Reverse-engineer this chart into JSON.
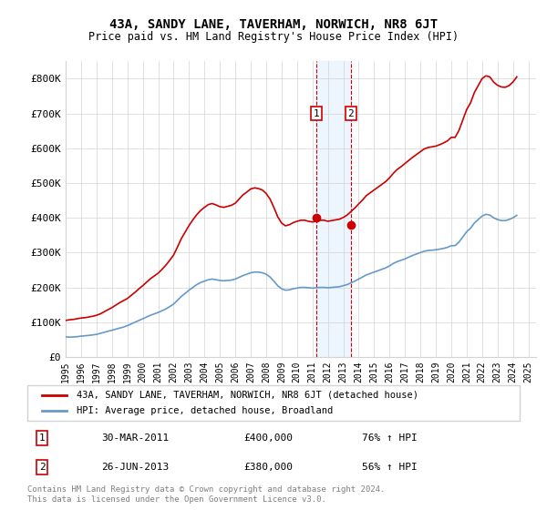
{
  "title": "43A, SANDY LANE, TAVERHAM, NORWICH, NR8 6JT",
  "subtitle": "Price paid vs. HM Land Registry's House Price Index (HPI)",
  "legend_line1": "43A, SANDY LANE, TAVERHAM, NORWICH, NR8 6JT (detached house)",
  "legend_line2": "HPI: Average price, detached house, Broadland",
  "annotation1_label": "1",
  "annotation1_date": "30-MAR-2011",
  "annotation1_price": 400000,
  "annotation1_pct": "76% ↑ HPI",
  "annotation2_label": "2",
  "annotation2_date": "26-JUN-2013",
  "annotation2_price": 380000,
  "annotation2_pct": "56% ↑ HPI",
  "footer": "Contains HM Land Registry data © Crown copyright and database right 2024.\nThis data is licensed under the Open Government Licence v3.0.",
  "red_color": "#cc0000",
  "blue_color": "#6699cc",
  "annotation_box_color": "#cc0000",
  "shade_color": "#ddeeff",
  "ylim_min": 0,
  "ylim_max": 850000,
  "ylabel_ticks": [
    0,
    100000,
    200000,
    300000,
    400000,
    500000,
    600000,
    700000,
    800000
  ],
  "ylabel_labels": [
    "£0",
    "£100K",
    "£200K",
    "£300K",
    "£400K",
    "£500K",
    "£600K",
    "£700K",
    "£800K"
  ],
  "x_start_year": 1995,
  "x_end_year": 2025,
  "hpi_years": [
    1995.0,
    1995.25,
    1995.5,
    1995.75,
    1996.0,
    1996.25,
    1996.5,
    1996.75,
    1997.0,
    1997.25,
    1997.5,
    1997.75,
    1998.0,
    1998.25,
    1998.5,
    1998.75,
    1999.0,
    1999.25,
    1999.5,
    1999.75,
    2000.0,
    2000.25,
    2000.5,
    2000.75,
    2001.0,
    2001.25,
    2001.5,
    2001.75,
    2002.0,
    2002.25,
    2002.5,
    2002.75,
    2003.0,
    2003.25,
    2003.5,
    2003.75,
    2004.0,
    2004.25,
    2004.5,
    2004.75,
    2005.0,
    2005.25,
    2005.5,
    2005.75,
    2006.0,
    2006.25,
    2006.5,
    2006.75,
    2007.0,
    2007.25,
    2007.5,
    2007.75,
    2008.0,
    2008.25,
    2008.5,
    2008.75,
    2009.0,
    2009.25,
    2009.5,
    2009.75,
    2010.0,
    2010.25,
    2010.5,
    2010.75,
    2011.0,
    2011.25,
    2011.5,
    2011.75,
    2012.0,
    2012.25,
    2012.5,
    2012.75,
    2013.0,
    2013.25,
    2013.5,
    2013.75,
    2014.0,
    2014.25,
    2014.5,
    2014.75,
    2015.0,
    2015.25,
    2015.5,
    2015.75,
    2016.0,
    2016.25,
    2016.5,
    2016.75,
    2017.0,
    2017.25,
    2017.5,
    2017.75,
    2018.0,
    2018.25,
    2018.5,
    2018.75,
    2019.0,
    2019.25,
    2019.5,
    2019.75,
    2020.0,
    2020.25,
    2020.5,
    2020.75,
    2021.0,
    2021.25,
    2021.5,
    2021.75,
    2022.0,
    2022.25,
    2022.5,
    2022.75,
    2023.0,
    2023.25,
    2023.5,
    2023.75,
    2024.0,
    2024.25
  ],
  "hpi_values": [
    58000,
    57000,
    57500,
    58500,
    60000,
    61000,
    62000,
    63500,
    65000,
    68000,
    71000,
    74000,
    77000,
    80000,
    83000,
    86000,
    90000,
    95000,
    100000,
    105000,
    110000,
    115000,
    120000,
    124000,
    128000,
    133000,
    138000,
    145000,
    152000,
    163000,
    174000,
    183000,
    192000,
    200000,
    208000,
    214000,
    218000,
    222000,
    224000,
    222000,
    220000,
    219000,
    220000,
    221000,
    224000,
    229000,
    234000,
    238000,
    242000,
    244000,
    244000,
    242000,
    238000,
    230000,
    218000,
    205000,
    196000,
    192000,
    193000,
    196000,
    198000,
    200000,
    200000,
    199000,
    198000,
    199000,
    200000,
    200000,
    199000,
    200000,
    201000,
    202000,
    205000,
    208000,
    213000,
    218000,
    224000,
    230000,
    236000,
    240000,
    244000,
    248000,
    252000,
    256000,
    262000,
    269000,
    274000,
    278000,
    282000,
    287000,
    292000,
    296000,
    300000,
    304000,
    306000,
    307000,
    308000,
    310000,
    312000,
    315000,
    320000,
    320000,
    330000,
    345000,
    360000,
    370000,
    385000,
    395000,
    405000,
    410000,
    408000,
    400000,
    395000,
    392000,
    392000,
    395000,
    400000,
    407000
  ],
  "red_years": [
    1995.0,
    1995.25,
    1995.5,
    1995.75,
    1996.0,
    1996.25,
    1996.5,
    1996.75,
    1997.0,
    1997.25,
    1997.5,
    1997.75,
    1998.0,
    1998.25,
    1998.5,
    1998.75,
    1999.0,
    1999.25,
    1999.5,
    1999.75,
    2000.0,
    2000.25,
    2000.5,
    2000.75,
    2001.0,
    2001.25,
    2001.5,
    2001.75,
    2002.0,
    2002.25,
    2002.5,
    2002.75,
    2003.0,
    2003.25,
    2003.5,
    2003.75,
    2004.0,
    2004.25,
    2004.5,
    2004.75,
    2005.0,
    2005.25,
    2005.5,
    2005.75,
    2006.0,
    2006.25,
    2006.5,
    2006.75,
    2007.0,
    2007.25,
    2007.5,
    2007.75,
    2008.0,
    2008.25,
    2008.5,
    2008.75,
    2009.0,
    2009.25,
    2009.5,
    2009.75,
    2010.0,
    2010.25,
    2010.5,
    2010.75,
    2011.0,
    2011.25,
    2011.5,
    2011.75,
    2012.0,
    2012.25,
    2012.5,
    2012.75,
    2013.0,
    2013.25,
    2013.5,
    2013.75,
    2014.0,
    2014.25,
    2014.5,
    2014.75,
    2015.0,
    2015.25,
    2015.5,
    2015.75,
    2016.0,
    2016.25,
    2016.5,
    2016.75,
    2017.0,
    2017.25,
    2017.5,
    2017.75,
    2018.0,
    2018.25,
    2018.5,
    2018.75,
    2019.0,
    2019.25,
    2019.5,
    2019.75,
    2020.0,
    2020.25,
    2020.5,
    2020.75,
    2021.0,
    2021.25,
    2021.5,
    2021.75,
    2022.0,
    2022.25,
    2022.5,
    2022.75,
    2023.0,
    2023.25,
    2023.5,
    2023.75,
    2024.0,
    2024.25
  ],
  "red_values": [
    105000,
    107000,
    108000,
    110000,
    112000,
    113000,
    115000,
    117000,
    120000,
    124000,
    130000,
    136000,
    142000,
    149000,
    156000,
    162000,
    168000,
    177000,
    186000,
    196000,
    205000,
    215000,
    225000,
    233000,
    241000,
    252000,
    264000,
    278000,
    293000,
    316000,
    340000,
    359000,
    378000,
    394000,
    409000,
    421000,
    430000,
    438000,
    441000,
    437000,
    432000,
    430000,
    433000,
    436000,
    442000,
    454000,
    466000,
    474000,
    483000,
    486000,
    484000,
    480000,
    470000,
    454000,
    430000,
    403000,
    385000,
    377000,
    380000,
    386000,
    390000,
    393000,
    393000,
    390000,
    388000,
    390000,
    393000,
    393000,
    390000,
    392000,
    394000,
    396000,
    401000,
    408000,
    418000,
    428000,
    440000,
    451000,
    464000,
    472000,
    480000,
    488000,
    496000,
    504000,
    515000,
    528000,
    539000,
    547000,
    556000,
    565000,
    574000,
    582000,
    590000,
    598000,
    602000,
    604000,
    606000,
    610000,
    615000,
    621000,
    631000,
    631000,
    651000,
    681000,
    711000,
    730000,
    760000,
    780000,
    800000,
    808000,
    805000,
    790000,
    781000,
    776000,
    775000,
    780000,
    790000,
    805000
  ]
}
